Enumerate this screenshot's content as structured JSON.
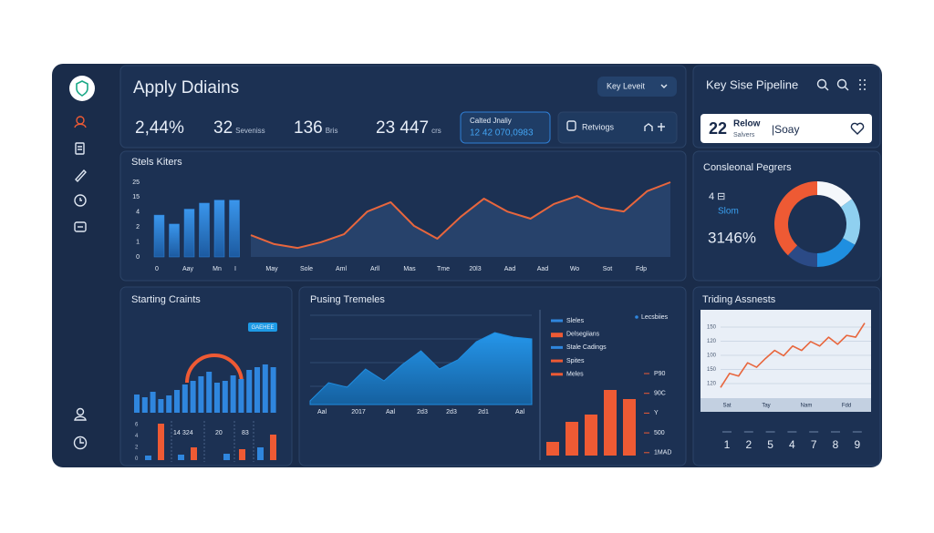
{
  "header": {
    "title": "Apply Ddiains",
    "dropdown": "Key Leveit"
  },
  "stats": [
    {
      "value": "2,44%"
    },
    {
      "value": "32",
      "unit": "Seveniss"
    },
    {
      "value": "136",
      "unit": "Bris"
    },
    {
      "value": "23 447",
      "unit": "crs"
    }
  ],
  "quality": {
    "label": "Calted Jnaliy",
    "value": "12 42 070,0983"
  },
  "action": {
    "label": "Retviogs"
  },
  "pipeline": {
    "title": "Key Sise Pipeline",
    "card": {
      "number": "22",
      "label": "Relow",
      "sublabel": "Salvers",
      "note": "|Soay"
    }
  },
  "sales_chart": {
    "title": "Stels Kiters",
    "y_labels": [
      "25",
      "15",
      "4",
      "2",
      "1",
      "0"
    ],
    "x_labels": [
      "0",
      "Aay",
      "Mn",
      "I",
      "May",
      "Sole",
      "Aml",
      "Arll",
      "Mas",
      "Tme",
      "20l3",
      "Aad",
      "Aad",
      "Wo",
      "Sot",
      "Fdp"
    ],
    "ylim": [
      0,
      25
    ],
    "bars": [
      14,
      11,
      16,
      18,
      19,
      19
    ],
    "line": [
      7.3,
      4.3,
      3.0,
      4.9,
      7.6,
      15.2,
      18.3,
      10.4,
      6.1,
      13.4,
      19.5,
      15.2,
      12.8,
      17.7,
      20.4,
      16.5,
      15.2,
      22.0,
      25.0
    ],
    "bar_color": "#2f86de",
    "line_color": "#e8663d"
  },
  "donut": {
    "title": "Consleonal Pegrers",
    "kpi": "4 ⊟",
    "kpi_label": "Slom",
    "percent": "3146%",
    "values": [
      15,
      18,
      17,
      12,
      38
    ],
    "colors": [
      "#f4f7fb",
      "#8fd0f0",
      "#1f8fe0",
      "#2b4a86",
      "#ee5a34"
    ]
  },
  "starting": {
    "title": "Starting Craints",
    "badge": "GAEHEE",
    "ylim": [
      0,
      60
    ],
    "values": [
      20,
      17,
      23,
      15,
      19,
      25,
      31,
      35,
      40,
      45,
      33,
      35,
      41,
      37,
      47,
      50,
      53,
      50
    ],
    "color": "#2f86de",
    "mini_labels": [
      "14",
      "324",
      "20",
      "83"
    ],
    "mini_axis": [
      "6",
      "4",
      "2",
      "0"
    ],
    "mini_ylim": [
      0,
      40
    ],
    "mini_values": [
      5,
      40,
      6,
      14,
      7,
      12,
      14,
      28
    ],
    "mini_colors": [
      "#2f86de",
      "#ee5a34",
      "#2f86de",
      "#ee5a34",
      "#2f86de",
      "#ee5a34",
      "#2f86de",
      "#ee5a34"
    ]
  },
  "pusing": {
    "title": "Pusing Tremeles",
    "x_labels": [
      "Aal",
      "2017",
      "Aal",
      "2d3",
      "2d3",
      "2d1",
      "Aal"
    ],
    "ylim": [
      0,
      80
    ],
    "area": [
      4,
      24,
      19,
      39,
      26,
      44,
      59,
      39,
      49,
      69,
      79,
      74,
      72
    ],
    "area_color": "#1f8de0",
    "legend": [
      {
        "name": "Sleles",
        "color": "#2f86de"
      },
      {
        "name": "Delsegiians",
        "color": "#ee5a34"
      },
      {
        "name": "Stale Cadings",
        "color": "#2f86de"
      },
      {
        "name": "Spites",
        "color": "#ee5a34"
      },
      {
        "name": "Meles",
        "color": "#ee5a34"
      }
    ],
    "legend_note": "Lecsbiies",
    "bars": [
      15,
      37,
      45,
      72,
      62
    ],
    "bar_color": "#ee5a34",
    "bar_labels": [
      "P90",
      "90C",
      "Y",
      "500",
      "1MAD"
    ]
  },
  "trading": {
    "title": "Triding Assnests",
    "y_labels": [
      "150",
      "120",
      "100",
      "150",
      "120"
    ],
    "x_labels": [
      "Sat",
      "Tay",
      "Nam",
      "Fdd"
    ],
    "ylim": [
      0,
      100
    ],
    "line": [
      12,
      28,
      25,
      40,
      35,
      45,
      54,
      48,
      59,
      54,
      64,
      59,
      69,
      61,
      71,
      69,
      85
    ],
    "line_color": "#e8663d",
    "steps": [
      "1",
      "2",
      "5",
      "4",
      "7",
      "8",
      "9"
    ]
  }
}
